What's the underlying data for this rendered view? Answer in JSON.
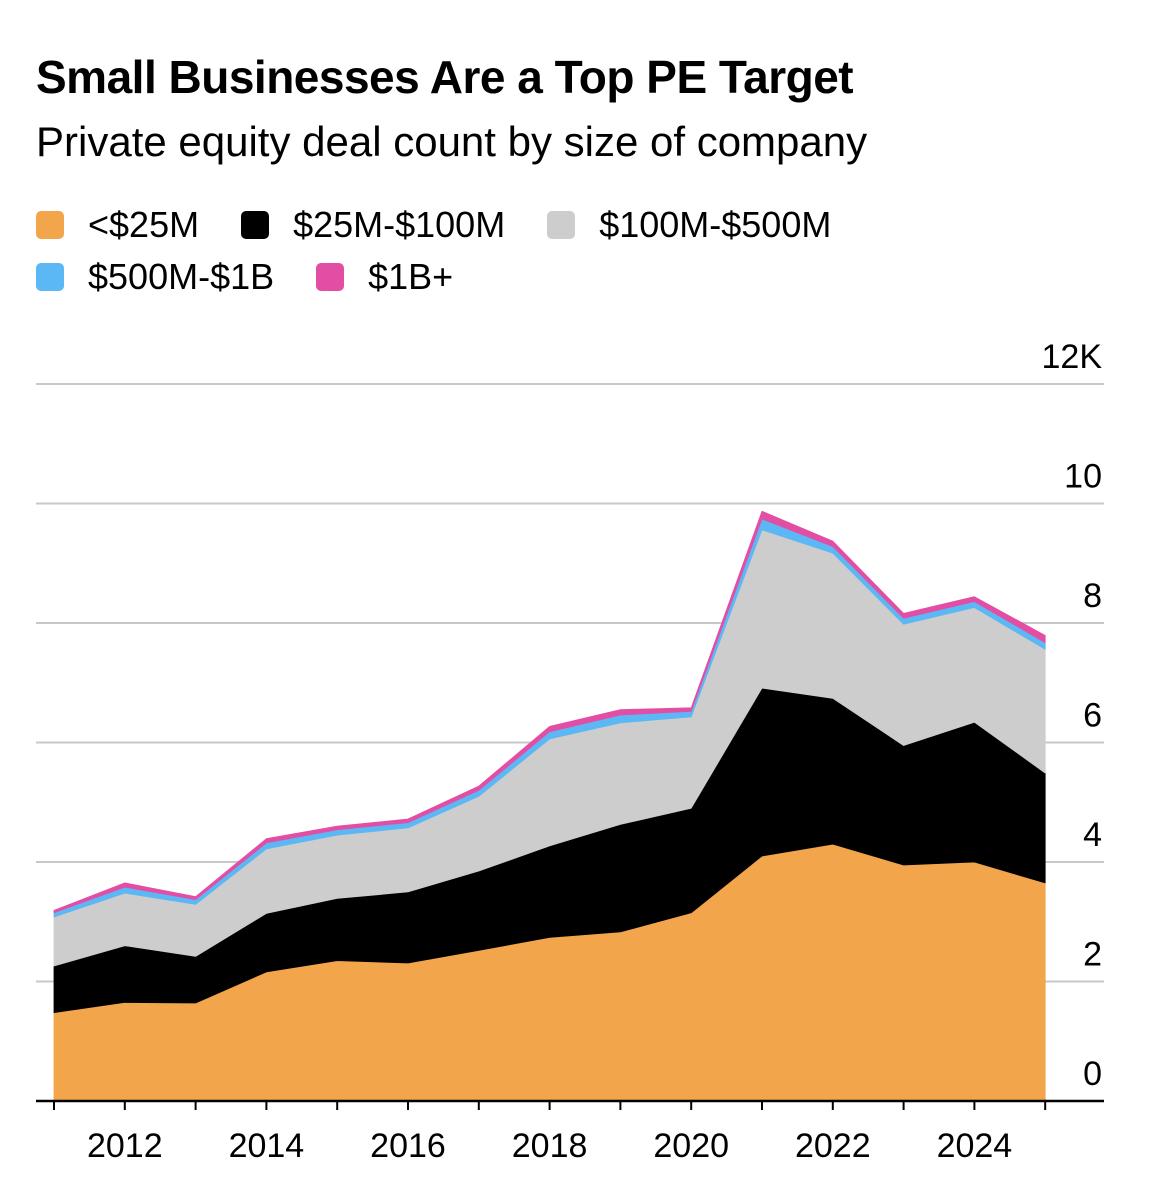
{
  "chart_data": {
    "type": "area",
    "stacked": true,
    "title": "Small Businesses Are a Top PE Target",
    "subtitle": "Private equity deal count by size of company",
    "xlabel": "",
    "ylabel": "",
    "unit_label": "12K",
    "x": [
      2011,
      2012,
      2013,
      2014,
      2015,
      2016,
      2017,
      2018,
      2019,
      2020,
      2021,
      2022,
      2023,
      2024,
      2025
    ],
    "x_tick_labels": [
      "2012",
      "2014",
      "2016",
      "2018",
      "2020",
      "2022",
      "2024"
    ],
    "x_tick_values": [
      2012,
      2014,
      2016,
      2018,
      2020,
      2022,
      2024
    ],
    "y_tick_labels": [
      "0",
      "2",
      "4",
      "6",
      "8",
      "10",
      "12K"
    ],
    "y_tick_values": [
      0,
      2,
      4,
      6,
      8,
      10,
      12
    ],
    "ylim": [
      0,
      12
    ],
    "grid": true,
    "legend_position": "top-left",
    "series": [
      {
        "name": "<$25M",
        "color": "#f2a54a",
        "values": [
          1.48,
          1.65,
          1.64,
          2.16,
          2.35,
          2.31,
          2.52,
          2.74,
          2.83,
          3.15,
          4.1,
          4.3,
          3.95,
          4.0,
          3.65
        ]
      },
      {
        "name": "$25M-$100M",
        "color": "#000000",
        "values": [
          0.78,
          0.95,
          0.78,
          0.98,
          1.04,
          1.19,
          1.33,
          1.53,
          1.8,
          1.75,
          2.81,
          2.44,
          2.0,
          2.34,
          1.84
        ]
      },
      {
        "name": "$100M-$500M",
        "color": "#cdcdcd",
        "values": [
          0.82,
          0.88,
          0.87,
          1.08,
          1.06,
          1.07,
          1.25,
          1.79,
          1.7,
          1.53,
          2.65,
          2.43,
          2.03,
          1.92,
          2.07
        ]
      },
      {
        "name": "$500M-$1B",
        "color": "#5bb8f5",
        "values": [
          0.07,
          0.1,
          0.08,
          0.1,
          0.09,
          0.09,
          0.1,
          0.12,
          0.13,
          0.09,
          0.18,
          0.11,
          0.1,
          0.1,
          0.11
        ]
      },
      {
        "name": "$1B+",
        "color": "#e34ea5",
        "values": [
          0.04,
          0.07,
          0.05,
          0.07,
          0.06,
          0.06,
          0.07,
          0.09,
          0.09,
          0.06,
          0.13,
          0.09,
          0.08,
          0.08,
          0.12
        ]
      }
    ]
  }
}
